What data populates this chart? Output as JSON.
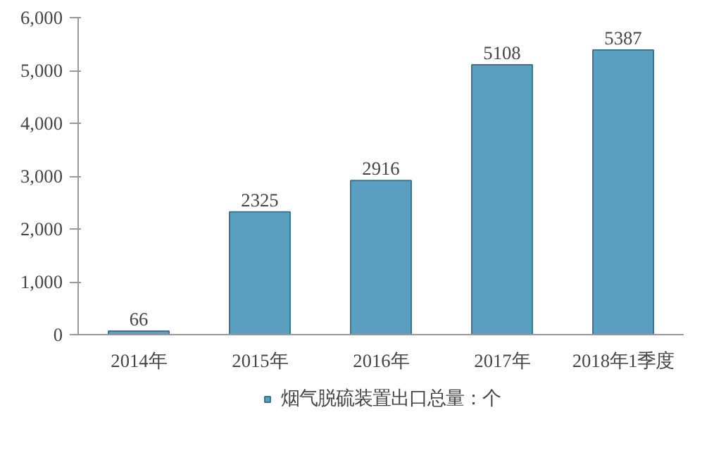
{
  "chart_data": {
    "type": "bar",
    "categories": [
      "2014年",
      "2015年",
      "2016年",
      "2017年",
      "2018年1季度"
    ],
    "series": [
      {
        "name": "烟气脱硫装置出口总量：个",
        "color": "#5b9fc0",
        "values": [
          66,
          2325,
          2916,
          5108,
          5387
        ]
      }
    ],
    "ylim": [
      0,
      6000
    ],
    "yticks": [
      {
        "value": 0,
        "label": "0"
      },
      {
        "value": 1000,
        "label": "1,000"
      },
      {
        "value": 2000,
        "label": "2,000"
      },
      {
        "value": 3000,
        "label": "3,000"
      },
      {
        "value": 4000,
        "label": "4,000"
      },
      {
        "value": 5000,
        "label": "5,000"
      },
      {
        "value": 6000,
        "label": "6,000"
      }
    ],
    "data_labels": true,
    "legend": "bottom",
    "grid": false
  }
}
